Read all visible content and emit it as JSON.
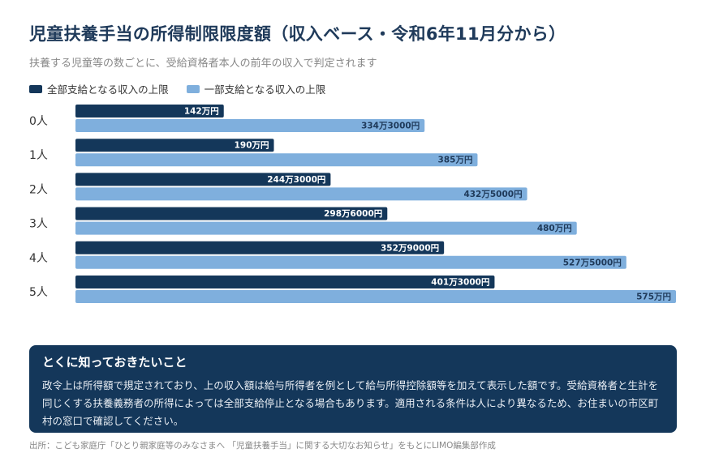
{
  "title": "児童扶養手当の所得制限限度額（収入ベース・令和6年11月分から）",
  "subtitle": "扶養する児童等の数ごとに、受給資格者本人の前年の収入で判定されます",
  "colors": {
    "full": "#14375a",
    "partial": "#7fafdd",
    "note_bg": "#14375a"
  },
  "chart_data": {
    "type": "bar",
    "orientation": "horizontal",
    "categories": [
      "0人",
      "1人",
      "2人",
      "3人",
      "4人",
      "5人"
    ],
    "series": [
      {
        "name": "全部支給となる収入の上限",
        "values": [
          142,
          190,
          244.3,
          298.6,
          352.9,
          401.3
        ],
        "labels": [
          "142万円",
          "190万円",
          "244万3000円",
          "298万6000円",
          "352万9000円",
          "401万3000円"
        ]
      },
      {
        "name": "一部支給となる収入の上限",
        "values": [
          334.3,
          385,
          432.5,
          480,
          527.5,
          575
        ],
        "labels": [
          "334万3000円",
          "385万円",
          "432万5000円",
          "480万円",
          "527万5000円",
          "575万円"
        ]
      }
    ],
    "xlim": [
      0,
      575
    ],
    "grid": false,
    "legend": "top-left"
  },
  "note": {
    "title": "とくに知っておきたいこと",
    "body": "政令上は所得額で規定されており、上の収入額は給与所得者を例として給与所得控除額等を加えて表示した額です。受給資格者と生計を同じくする扶養義務者の所得によっては全部支給停止となる場合もあります。適用される条件は人により異なるため、お住まいの市区町村の窓口で確認してください。"
  },
  "source": "出所：こども家庭庁「ひとり親家庭等のみなさまへ 「児童扶養手当」に関する大切なお知らせ」をもとにLIMO編集部作成"
}
